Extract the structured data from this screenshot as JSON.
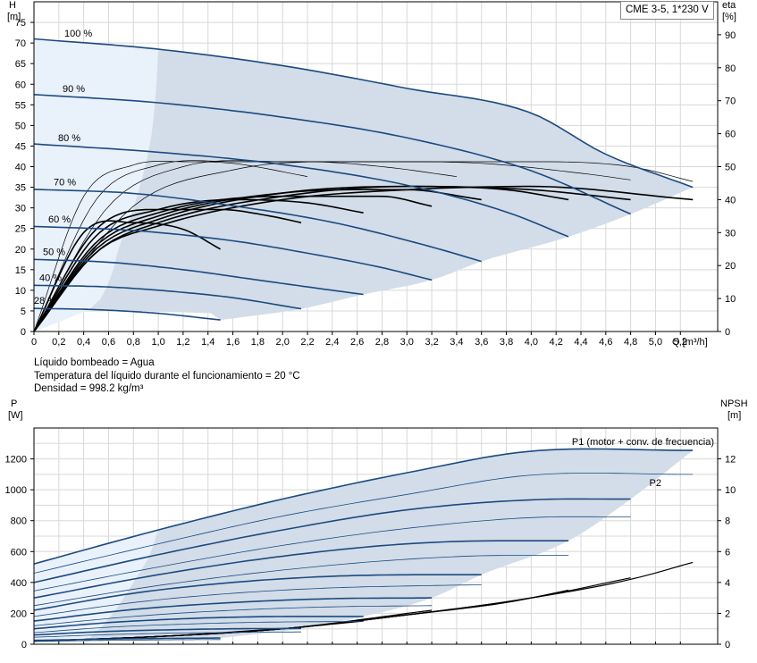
{
  "model_label": "CME 3-5, 1*230 V",
  "info": {
    "line1": "Líquido bombeado = Agua",
    "line2": "Temperatura del líquido durante el funcionamiento = 20 °C",
    "line3": "Densidad = 998.2 kg/m³"
  },
  "colors": {
    "pump_curve": "#1c4a80",
    "power_curve": "#1c4a80",
    "efficiency": "#000000",
    "npsh": "#000000",
    "operating_area": "#d2dde9",
    "extended_area": "#e9f1fb",
    "grid": "#d8d8d8"
  },
  "chart_data": [
    {
      "type": "line",
      "name_label": "head-efficiency-chart",
      "ylabel_top": "H",
      "ylabel_bottom": "[m]",
      "y2label_top": "eta",
      "y2label_bottom": "[%]",
      "xlabel": "Q [m³/h]",
      "xlim": [
        0,
        5.5
      ],
      "ylim": [
        0,
        80
      ],
      "y2lim": [
        0,
        100
      ],
      "x_ticks": [
        "0",
        "0,2",
        "0,4",
        "0,6",
        "0,8",
        "1,0",
        "1,2",
        "1,4",
        "1,6",
        "1,8",
        "2,0",
        "2,2",
        "2,4",
        "2,6",
        "2,8",
        "3,0",
        "3,2",
        "3,4",
        "3,6",
        "3,8",
        "4,0",
        "4,2",
        "4,4",
        "4,6",
        "4,8",
        "5,0",
        "5,2"
      ],
      "y_ticks": [
        "0",
        "5",
        "10",
        "15",
        "20",
        "25",
        "30",
        "35",
        "40",
        "45",
        "50",
        "55",
        "60",
        "65",
        "70",
        "75"
      ],
      "y2_ticks": [
        "0",
        "10",
        "20",
        "30",
        "40",
        "50",
        "60",
        "70",
        "80",
        "90"
      ],
      "grid": true,
      "series": [
        {
          "name": "100 %",
          "x": [
            0,
            1.0,
            2.0,
            3.0,
            4.0,
            4.6,
            5.3
          ],
          "y": [
            71,
            68.5,
            64.5,
            59,
            53,
            43,
            35
          ]
        },
        {
          "name": "90 %",
          "x": [
            0,
            1.0,
            2.0,
            3.0,
            4.0,
            4.8
          ],
          "y": [
            57.5,
            55.5,
            52,
            47,
            39,
            28.5
          ]
        },
        {
          "name": "80 %",
          "x": [
            0,
            1.0,
            2.0,
            3.0,
            3.8,
            4.3
          ],
          "y": [
            45.5,
            43.5,
            40.5,
            35.5,
            29,
            23
          ]
        },
        {
          "name": "70 %",
          "x": [
            0,
            0.8,
            1.6,
            2.4,
            3.2,
            3.6
          ],
          "y": [
            34.5,
            33.5,
            30.5,
            26.5,
            20.5,
            17
          ]
        },
        {
          "name": "60 %",
          "x": [
            0,
            0.8,
            1.6,
            2.2,
            2.8,
            3.2
          ],
          "y": [
            25.5,
            24.5,
            22,
            19,
            15.5,
            12.5
          ]
        },
        {
          "name": "50 %",
          "x": [
            0,
            0.6,
            1.2,
            1.8,
            2.4,
            2.65
          ],
          "y": [
            17.5,
            16.8,
            15,
            12.5,
            10,
            9
          ]
        },
        {
          "name": "40 %",
          "x": [
            0,
            0.6,
            1.2,
            1.6,
            2.15
          ],
          "y": [
            11.2,
            10.8,
            9.5,
            8.2,
            5.5
          ]
        },
        {
          "name": "28 %",
          "x": [
            0,
            0.5,
            1.0,
            1.5
          ],
          "y": [
            5.6,
            5.3,
            4.4,
            2.8
          ]
        }
      ],
      "efficiency_curves_eta": [
        {
          "x": [
            0,
            0.5,
            1.0,
            2.0,
            3.0,
            4.0,
            5.3
          ],
          "eta": [
            0,
            24,
            32,
            40,
            43,
            44,
            40
          ]
        },
        {
          "x": [
            0,
            0.5,
            1.0,
            2.0,
            3.0,
            4.0,
            4.8
          ],
          "eta": [
            0,
            24,
            33,
            41,
            44,
            43,
            40
          ]
        },
        {
          "x": [
            0,
            0.5,
            1.0,
            2.0,
            3.0,
            3.8,
            4.3
          ],
          "eta": [
            0,
            25,
            34,
            42,
            44,
            43,
            40
          ]
        },
        {
          "x": [
            0,
            0.5,
            1.0,
            2.0,
            3.0,
            3.6
          ],
          "eta": [
            0,
            26,
            35,
            42,
            43,
            40
          ]
        },
        {
          "x": [
            0,
            0.5,
            1.0,
            2.0,
            2.8,
            3.2
          ],
          "eta": [
            0,
            27,
            36,
            41,
            41,
            38
          ]
        },
        {
          "x": [
            0,
            0.5,
            1.0,
            1.6,
            2.2,
            2.65
          ],
          "eta": [
            0,
            29,
            37,
            40,
            39,
            36
          ]
        },
        {
          "x": [
            0,
            0.5,
            1.0,
            1.5,
            1.9,
            2.15
          ],
          "eta": [
            0,
            31,
            37,
            37,
            35,
            33
          ]
        },
        {
          "x": [
            0,
            0.4,
            0.8,
            1.2,
            1.5
          ],
          "eta": [
            0,
            30,
            33,
            31,
            25
          ]
        }
      ],
      "max_eta_curves": [
        {
          "x": [
            0,
            0.8,
            1.6,
            2.4,
            3.2,
            4.0,
            4.8,
            5.3
          ],
          "eta": [
            0,
            38,
            49,
            51.5,
            51.5,
            51.5,
            50,
            45.5
          ]
        },
        {
          "x": [
            0,
            0.6,
            1.2,
            2.0,
            2.8,
            3.6,
            4.4,
            4.8
          ],
          "eta": [
            0,
            38,
            50,
            51.5,
            51.5,
            51,
            48,
            46
          ]
        },
        {
          "x": [
            0,
            0.5,
            1.0,
            1.6,
            2.2,
            2.8,
            3.4
          ],
          "eta": [
            0,
            40,
            50.5,
            51.5,
            51.5,
            50,
            47
          ]
        },
        {
          "x": [
            0,
            0.4,
            0.8,
            1.2,
            1.6,
            2.2
          ],
          "eta": [
            0,
            41,
            50.5,
            51.5,
            51,
            47
          ]
        }
      ]
    },
    {
      "type": "line",
      "name_label": "power-npsh-chart",
      "ylabel_top": "P",
      "ylabel_bottom": "[W]",
      "y2label_top": "NPSH",
      "y2label_bottom": "[m]",
      "xlim": [
        0,
        5.5
      ],
      "ylim": [
        0,
        1400
      ],
      "y2lim": [
        0,
        14
      ],
      "y_ticks": [
        "0",
        "200",
        "400",
        "600",
        "800",
        "1000",
        "1200"
      ],
      "y2_ticks": [
        "0",
        "2",
        "4",
        "6",
        "8",
        "10",
        "12"
      ],
      "grid": true,
      "series_labels": {
        "p1": "P1 (motor + conv. de frecuencia)",
        "p2": "P2"
      },
      "p1_curves": [
        {
          "x": [
            0,
            1.0,
            2.0,
            3.0,
            4.0,
            5.3
          ],
          "y": [
            520,
            740,
            940,
            1110,
            1250,
            1255
          ]
        },
        {
          "x": [
            0,
            1.0,
            2.0,
            3.0,
            4.0,
            4.8
          ],
          "y": [
            400,
            580,
            740,
            870,
            935,
            940
          ]
        },
        {
          "x": [
            0,
            1.0,
            2.0,
            3.0,
            3.8,
            4.3
          ],
          "y": [
            300,
            450,
            570,
            650,
            670,
            670
          ]
        },
        {
          "x": [
            0,
            0.8,
            1.6,
            2.4,
            3.2,
            3.6
          ],
          "y": [
            220,
            330,
            400,
            440,
            450,
            450
          ]
        },
        {
          "x": [
            0,
            0.8,
            1.6,
            2.4,
            3.2
          ],
          "y": [
            150,
            225,
            270,
            295,
            300
          ]
        },
        {
          "x": [
            0,
            0.6,
            1.2,
            1.8,
            2.65
          ],
          "y": [
            100,
            140,
            165,
            178,
            180
          ]
        },
        {
          "x": [
            0,
            0.5,
            1.0,
            1.6,
            2.15
          ],
          "y": [
            60,
            80,
            92,
            100,
            102
          ]
        },
        {
          "x": [
            0,
            0.5,
            1.0,
            1.5
          ],
          "y": [
            25,
            32,
            37,
            40
          ]
        }
      ],
      "p2_curves": [
        {
          "x": [
            0,
            1.0,
            2.0,
            3.0,
            4.0,
            5.3
          ],
          "y": [
            460,
            650,
            830,
            970,
            1095,
            1100
          ]
        },
        {
          "x": [
            0,
            1.0,
            2.0,
            3.0,
            4.0,
            4.8
          ],
          "y": [
            345,
            500,
            640,
            750,
            820,
            825
          ]
        },
        {
          "x": [
            0,
            1.0,
            2.0,
            3.0,
            3.8,
            4.3
          ],
          "y": [
            250,
            380,
            480,
            550,
            575,
            575
          ]
        },
        {
          "x": [
            0,
            0.8,
            1.6,
            2.4,
            3.2,
            3.6
          ],
          "y": [
            180,
            270,
            330,
            365,
            380,
            385
          ]
        },
        {
          "x": [
            0,
            0.8,
            1.6,
            2.4,
            3.2
          ],
          "y": [
            120,
            180,
            220,
            242,
            250
          ]
        },
        {
          "x": [
            0,
            0.6,
            1.2,
            1.8,
            2.65
          ],
          "y": [
            75,
            110,
            130,
            142,
            148
          ]
        },
        {
          "x": [
            0,
            0.5,
            1.0,
            1.6,
            2.15
          ],
          "y": [
            45,
            60,
            70,
            76,
            80
          ]
        },
        {
          "x": [
            0,
            0.5,
            1.0,
            1.5
          ],
          "y": [
            18,
            24,
            28,
            30
          ]
        }
      ],
      "npsh_curves": [
        {
          "x": [
            0,
            1.0,
            2.0,
            3.0,
            4.0,
            4.8,
            5.3
          ],
          "y": [
            0.2,
            0.5,
            1.0,
            1.9,
            3.0,
            4.2,
            5.3
          ]
        },
        {
          "x": [
            0,
            1.0,
            2.0,
            3.0,
            4.0,
            4.8
          ],
          "y": [
            0.2,
            0.5,
            1.0,
            1.9,
            3.0,
            4.3
          ]
        },
        {
          "x": [
            0,
            1.0,
            2.0,
            3.0,
            3.8,
            4.3
          ],
          "y": [
            0.2,
            0.5,
            1.0,
            1.9,
            2.7,
            3.5
          ]
        },
        {
          "x": [
            0,
            1.0,
            2.0,
            3.0,
            3.6
          ],
          "y": [
            0.2,
            0.5,
            1.0,
            1.9,
            2.5
          ]
        },
        {
          "x": [
            0,
            1.0,
            2.0,
            3.2
          ],
          "y": [
            0.2,
            0.5,
            1.0,
            2.2
          ]
        },
        {
          "x": [
            0,
            1.0,
            2.0,
            2.65
          ],
          "y": [
            0.2,
            0.5,
            1.0,
            1.5
          ]
        },
        {
          "x": [
            0,
            1.0,
            2.15
          ],
          "y": [
            0.2,
            0.5,
            1.1
          ]
        },
        {
          "x": [
            0,
            1.0,
            1.5
          ],
          "y": [
            0.2,
            0.5,
            0.7
          ]
        }
      ]
    }
  ]
}
